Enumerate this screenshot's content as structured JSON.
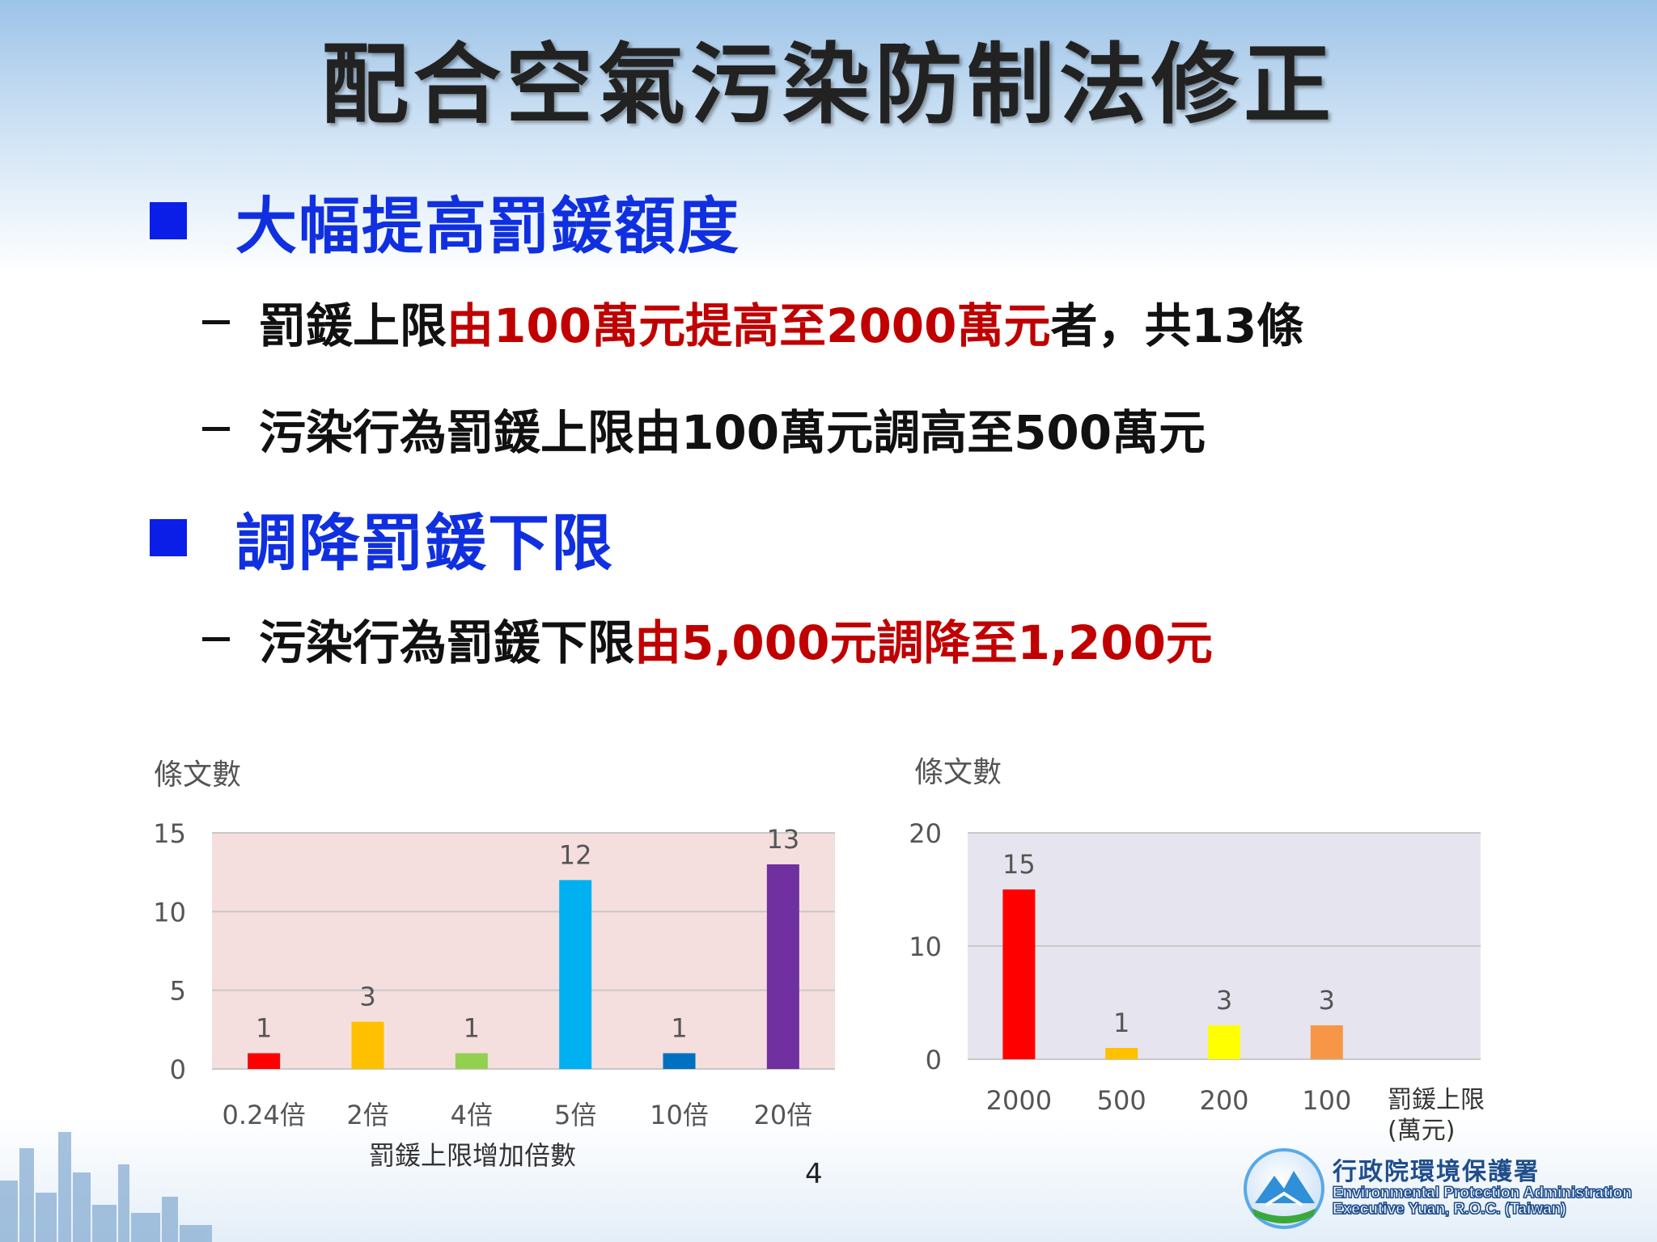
{
  "title": "配合空氣污染防制法修正",
  "section1": {
    "heading": "大幅提高罰鍰額度",
    "line1_a": "罰鍰上限",
    "line1_b": "由100萬元提高至2000萬元",
    "line1_c": "者，共13條",
    "line2": "污染行為罰鍰上限由100萬元調高至500萬元"
  },
  "section2": {
    "heading": "調降罰鍰下限",
    "line1_a": "污染行為罰鍰下限",
    "line1_b": "由5,000元調降至1,200元"
  },
  "chart_data": [
    {
      "type": "bar",
      "ylabel": "條文數",
      "xlabel": "罰鍰上限增加倍數",
      "categories": [
        "0.24倍",
        "2倍",
        "4倍",
        "5倍",
        "10倍",
        "20倍"
      ],
      "values": [
        1,
        3,
        1,
        12,
        1,
        13
      ],
      "data_labels": [
        "1",
        "3",
        "1",
        "12",
        "1",
        "13"
      ],
      "bar_colors": [
        "#ff0000",
        "#ffc000",
        "#92d050",
        "#00b0f0",
        "#0070c0",
        "#7030a0"
      ],
      "plot_background": "#f5dede",
      "ylim": [
        0,
        15
      ],
      "yticks": [
        "0",
        "5",
        "10",
        "15"
      ],
      "grid": true
    },
    {
      "type": "bar",
      "ylabel": "條文數",
      "xlabel": "罰鍰上限\n(萬元)",
      "xlabel_line1": "罰鍰上限",
      "xlabel_line2": "(萬元)",
      "categories": [
        "2000",
        "500",
        "200",
        "100"
      ],
      "values": [
        15,
        1,
        3,
        3
      ],
      "data_labels": [
        "15",
        "1",
        "3",
        "3"
      ],
      "bar_colors": [
        "#ff0000",
        "#ffc000",
        "#ffff00",
        "#f79646"
      ],
      "plot_background": "#e6e4ee",
      "ylim": [
        0,
        20
      ],
      "yticks": [
        "0",
        "10",
        "20"
      ],
      "grid": true
    }
  ],
  "page_number": "4",
  "logo": {
    "zh": "行政院環境保護署",
    "en1": "Environmental Protection Administration",
    "en2": "Executive Yuan, R.O.C. (Taiwan)"
  }
}
